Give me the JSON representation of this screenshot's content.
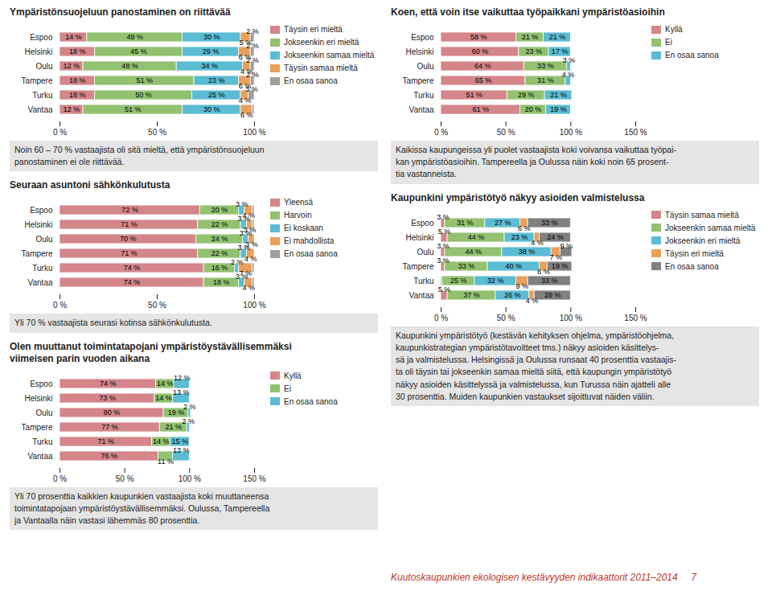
{
  "chart_data": [
    {
      "type": "bar",
      "orientation": "horizontal",
      "stacked": true,
      "title": "Ympäristönsuojeluun panostaminen on riittävää",
      "categories": [
        "Espoo",
        "Helsinki",
        "Oulu",
        "Tampere",
        "Turku",
        "Vantaa"
      ],
      "series": [
        {
          "name": "Täysin eri mieltä",
          "color": "#d4868a",
          "values": [
            14,
            18,
            12,
            18,
            18,
            12
          ],
          "value_labels": [
            "14 %",
            "18 %",
            "12 %",
            "18 %",
            "18 %",
            "12 %"
          ]
        },
        {
          "name": "Jokseenkin eri mieltä",
          "color": "#92c270",
          "values": [
            49,
            45,
            48,
            51,
            50,
            51
          ],
          "value_labels": [
            "49 %",
            "45 %",
            "48 %",
            "51 %",
            "50 %",
            "51 %"
          ]
        },
        {
          "name": "Jokseenkin samaa mieltä",
          "color": "#5bbcd4",
          "values": [
            30,
            29,
            34,
            23,
            25,
            30
          ],
          "value_labels": [
            "30 %",
            "29 %",
            "34 %",
            "23 %",
            "25 %",
            "30 %"
          ]
        },
        {
          "name": "Täysin samaa mieltä",
          "color": "#e8a05a",
          "values": [
            5,
            6,
            4,
            6,
            4,
            6
          ],
          "value_labels": [
            "5 %",
            "6 %",
            "4 %",
            "6 %",
            "4 %",
            "6 %"
          ]
        },
        {
          "name": "En osaa sanoa",
          "color": "#9e9e9e",
          "values": [
            2,
            2,
            2,
            2,
            3,
            1
          ],
          "value_labels": [
            "2 %",
            "2 %",
            "2 %",
            "2 %",
            "3 %",
            null
          ]
        }
      ],
      "xlim": [
        0,
        100
      ],
      "xticks": [
        {
          "value": 0,
          "label": "0 %"
        },
        {
          "value": 50,
          "label": "50 %"
        },
        {
          "value": 100,
          "label": "100 %"
        }
      ],
      "data_labels": true,
      "legend": "right",
      "grid": false,
      "annotations": [
        "Noin 60 – 70 % vastaajista oli sitä mieltä, että ympäristönsuojeluun\npanostaminen ei ole riittävää."
      ]
    },
    {
      "type": "bar",
      "orientation": "horizontal",
      "stacked": true,
      "title": "Koen, että voin itse vaikuttaa työpaikkani ympäristöasioihin",
      "categories": [
        "Espoo",
        "Helsinki",
        "Oulu",
        "Tampere",
        "Turku",
        "Vantaa"
      ],
      "series": [
        {
          "name": "Kyllä",
          "color": "#d4868a",
          "values": [
            58,
            60,
            64,
            65,
            51,
            61
          ],
          "value_labels": [
            "58 %",
            "60 %",
            "64 %",
            "65 %",
            "51 %",
            "61 %"
          ]
        },
        {
          "name": "Ei",
          "color": "#92c270",
          "values": [
            21,
            23,
            33,
            31,
            29,
            20
          ],
          "value_labels": [
            "21 %",
            "23 %",
            "33 %",
            "31 %",
            "29 %",
            "20 %"
          ]
        },
        {
          "name": "En osaa sanoa",
          "color": "#5bbcd4",
          "values": [
            21,
            17,
            3,
            4,
            21,
            19
          ],
          "value_labels": [
            "21 %",
            "17 %",
            "3 %",
            "4 %",
            "21 %",
            "19 %"
          ]
        }
      ],
      "xlim": [
        0,
        150
      ],
      "xticks": [
        {
          "value": 0,
          "label": "0 %"
        },
        {
          "value": 50,
          "label": "50 %"
        },
        {
          "value": 100,
          "label": "100 %"
        },
        {
          "value": 150,
          "label": "150 %"
        }
      ],
      "data_labels": true,
      "legend": "right",
      "grid": false,
      "annotations": [
        "Kaikissa kaupungeissa yli puolet vastaajista koki voivansa vaikuttaa työpai-\nkan ympäristöasioihin. Tampereella ja Oulussa näin koki noin 65 prosent-\ntia vastanneista."
      ]
    },
    {
      "type": "bar",
      "orientation": "horizontal",
      "stacked": true,
      "title": "Seuraan asuntoni sähkönkulutusta",
      "categories": [
        "Espoo",
        "Helsinki",
        "Oulu",
        "Tampere",
        "Turku",
        "Vantaa"
      ],
      "series": [
        {
          "name": "Yleensä",
          "color": "#d4868a",
          "values": [
            72,
            71,
            70,
            71,
            74,
            74
          ],
          "value_labels": [
            "72 %",
            "71 %",
            "70 %",
            "71 %",
            "74 %",
            "74 %"
          ]
        },
        {
          "name": "Harvoin",
          "color": "#92c270",
          "values": [
            20,
            22,
            24,
            22,
            16,
            18
          ],
          "value_labels": [
            "20 %",
            "22 %",
            "24 %",
            "22 %",
            "16 %",
            "18 %"
          ]
        },
        {
          "name": "Ei koskaan",
          "color": "#5bbcd4",
          "values": [
            3,
            3,
            3,
            3,
            2,
            3
          ],
          "value_labels": [
            "3 %",
            "3 %",
            "3 %",
            "3 %",
            "2 %",
            "3 %"
          ]
        },
        {
          "name": "Ei mahdollista",
          "color": "#e8a05a",
          "values": [
            4,
            3,
            3,
            4,
            7,
            4
          ],
          "value_labels": [
            "4 %",
            "3 %",
            "3 %",
            "4 %",
            "7 %",
            "4 %"
          ]
        },
        {
          "name": "En osaa sanoa",
          "color": "#9e9e9e",
          "values": [
            1,
            1,
            0,
            0,
            1,
            1
          ],
          "value_labels": [
            null,
            null,
            null,
            null,
            null,
            null
          ]
        }
      ],
      "xlim": [
        0,
        100
      ],
      "xticks": [
        {
          "value": 0,
          "label": "0 %"
        },
        {
          "value": 50,
          "label": "50 %"
        },
        {
          "value": 100,
          "label": "100 %"
        }
      ],
      "data_labels": true,
      "legend": "right",
      "grid": false,
      "annotations": [
        "Yli 70 % vastaajista seurasi kotinsa sähkönkulutusta."
      ]
    },
    {
      "type": "bar",
      "orientation": "horizontal",
      "stacked": true,
      "title": "Olen muuttanut toimintatapojani ympäristöystävällisemmäksi\nviimeisen parin vuoden aikana",
      "categories": [
        "Espoo",
        "Helsinki",
        "Oulu",
        "Tampere",
        "Turku",
        "Vantaa"
      ],
      "series": [
        {
          "name": "Kyllä",
          "color": "#d4868a",
          "values": [
            74,
            73,
            80,
            77,
            71,
            76
          ],
          "value_labels": [
            "74 %",
            "73 %",
            "80 %",
            "77 %",
            "71 %",
            "76 %"
          ]
        },
        {
          "name": "Ei",
          "color": "#92c270",
          "values": [
            14,
            14,
            19,
            21,
            14,
            11
          ],
          "value_labels": [
            "14 %",
            "14 %",
            "19 %",
            "21 %",
            "14 %",
            "11 %"
          ]
        },
        {
          "name": "En osaa sanoa",
          "color": "#5bbcd4",
          "values": [
            12,
            13,
            2,
            2,
            15,
            13
          ],
          "value_labels": [
            "12 %",
            "13 %",
            "2 %",
            "2 %",
            "15 %",
            "13 %"
          ]
        }
      ],
      "xlim": [
        0,
        150
      ],
      "xticks": [
        {
          "value": 0,
          "label": "0 %"
        },
        {
          "value": 50,
          "label": "50 %"
        },
        {
          "value": 100,
          "label": "100 %"
        },
        {
          "value": 150,
          "label": "150 %"
        }
      ],
      "data_labels": true,
      "legend": "right",
      "grid": false,
      "annotations": [
        "Yli 70 prosenttia kaikkien kaupunkien vastaajista koki muuttaneensa\ntoimintatapojaan ympäristöystävällisemmäksi. Oulussa, Tampereella\nja Vantaalla näin vastasi lähemmäs 80 prosenttia."
      ]
    },
    {
      "type": "bar",
      "orientation": "horizontal",
      "stacked": true,
      "title": "Kaupunkini ympäristötyö näkyy asioiden valmistelussa",
      "categories": [
        "Espoo",
        "Helsinki",
        "Oulu",
        "Tampere",
        "Turku",
        "Vantaa"
      ],
      "series": [
        {
          "name": "Täysin samaa mieltä",
          "color": "#d4868a",
          "values": [
            3,
            5,
            3,
            3,
            1,
            5
          ],
          "value_labels": [
            "3 %",
            "5 %",
            "3 %",
            "3 %",
            null,
            "5 %"
          ]
        },
        {
          "name": "Jokseenkin samaa mieltä",
          "color": "#92c270",
          "values": [
            31,
            44,
            44,
            33,
            25,
            37
          ],
          "value_labels": [
            "31 %",
            "44 %",
            "44 %",
            "33 %",
            "25 %",
            "37 %"
          ]
        },
        {
          "name": "Jokseenkin eri mieltä",
          "color": "#5bbcd4",
          "values": [
            27,
            23,
            38,
            40,
            32,
            26
          ],
          "value_labels": [
            "27 %",
            "23 %",
            "38 %",
            "40 %",
            "32 %",
            "26 %"
          ]
        },
        {
          "name": "Täysin eri mieltä",
          "color": "#e8a05a",
          "values": [
            6,
            4,
            7,
            6,
            9,
            4
          ],
          "value_labels": [
            "6 %",
            "4 %",
            "7 %",
            "6 %",
            "9 %",
            "4 %"
          ]
        },
        {
          "name": "En osaa sanoa",
          "color": "#808080",
          "values": [
            33,
            24,
            9,
            19,
            33,
            28
          ],
          "value_labels": [
            "33 %",
            "24 %",
            "9 %",
            "19 %",
            "33 %",
            "28 %"
          ]
        }
      ],
      "xlim": [
        0,
        150
      ],
      "xticks": [
        {
          "value": 0,
          "label": "0 %"
        },
        {
          "value": 50,
          "label": "50 %"
        },
        {
          "value": 100,
          "label": "100 %"
        },
        {
          "value": 150,
          "label": "150 %"
        }
      ],
      "data_labels": true,
      "legend": "right",
      "grid": false,
      "annotations": [
        "Kaupunkini ympäristötyö (kestävän kehityksen ohjelma, ympäristöohjelma,\nkaupunkistrategian ympäristötavoitteet tms.) näkyy asioiden käsittelys-\nsä ja valmistelussa. Helsingissä ja Oulussa runsaat 40 prosenttia vastaajis-\nta oli täysin tai jokseenkin samaa mieltä siitä, että kaupungin ympäristötyö\nnäkyy asioiden käsittelyssä ja valmistelussa, kun Turussa näin ajatteli alle\n30 prosenttia. Muiden kaupunkien vastaukset sijoittuvat näiden väliin."
      ]
    }
  ],
  "footer": "Kuutoskaupunkien ekologisen kestävyyden indikaattorit 2011–2014     7"
}
